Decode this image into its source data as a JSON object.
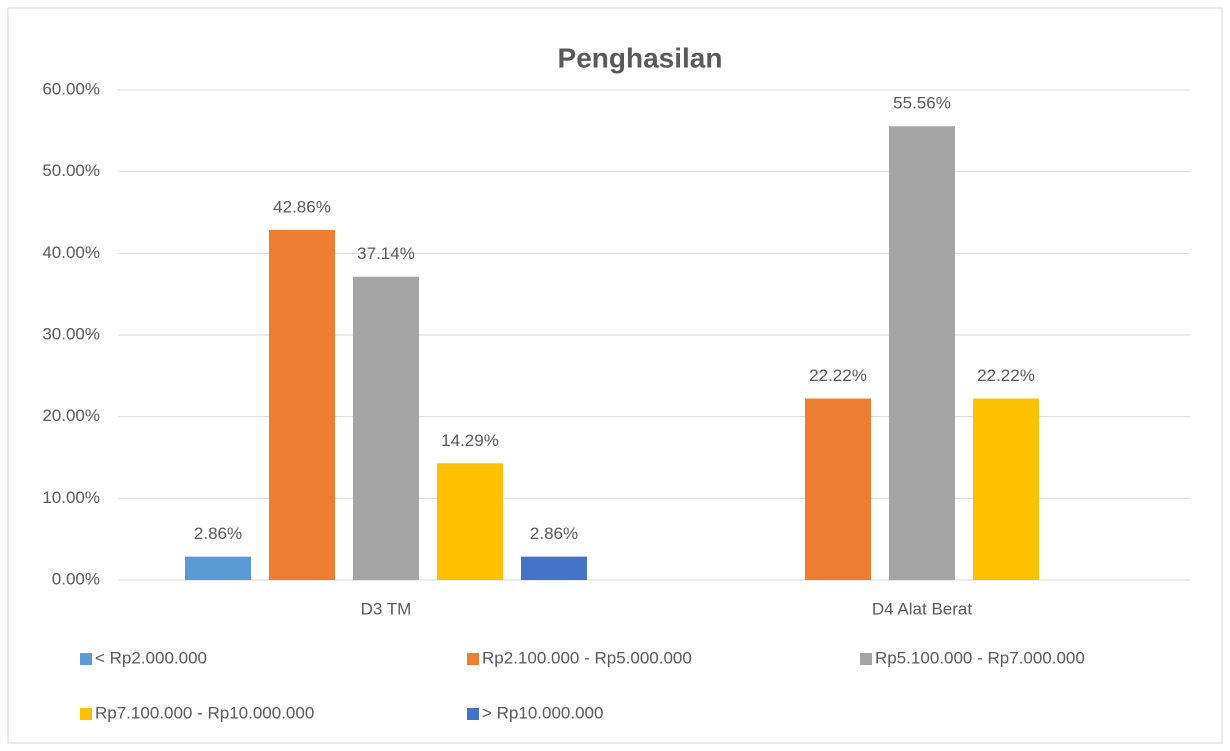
{
  "chart_data": {
    "type": "bar",
    "title": "Penghasilan",
    "categories": [
      "D3 TM",
      "D4 Alat Berat"
    ],
    "series": [
      {
        "name": "< Rp2.000.000",
        "color": "#5b9bd5",
        "values": [
          2.86,
          null
        ],
        "value_labels": [
          "2.86%",
          null
        ]
      },
      {
        "name": "Rp2.100.000 - Rp5.000.000",
        "color": "#ed7d31",
        "values": [
          42.86,
          22.22
        ],
        "value_labels": [
          "42.86%",
          "22.22%"
        ]
      },
      {
        "name": "Rp5.100.000 - Rp7.000.000",
        "color": "#a5a5a5",
        "values": [
          37.14,
          55.56
        ],
        "value_labels": [
          "37.14%",
          "55.56%"
        ]
      },
      {
        "name": "Rp7.100.000 - Rp10.000.000",
        "color": "#ffc000",
        "values": [
          14.29,
          22.22
        ],
        "value_labels": [
          "14.29%",
          "22.22%"
        ]
      },
      {
        "name": "> Rp10.000.000",
        "color": "#4472c4",
        "values": [
          2.86,
          null
        ],
        "value_labels": [
          "2.86%",
          null
        ]
      }
    ],
    "ylim": [
      0,
      60
    ],
    "yticks": [
      {
        "value": 0,
        "label": "0.00%"
      },
      {
        "value": 10,
        "label": "10.00%"
      },
      {
        "value": 20,
        "label": "20.00%"
      },
      {
        "value": 30,
        "label": "30.00%"
      },
      {
        "value": 40,
        "label": "40.00%"
      },
      {
        "value": 50,
        "label": "50.00%"
      },
      {
        "value": 60,
        "label": "60.00%"
      }
    ],
    "grid": true,
    "legend": "bottom"
  }
}
